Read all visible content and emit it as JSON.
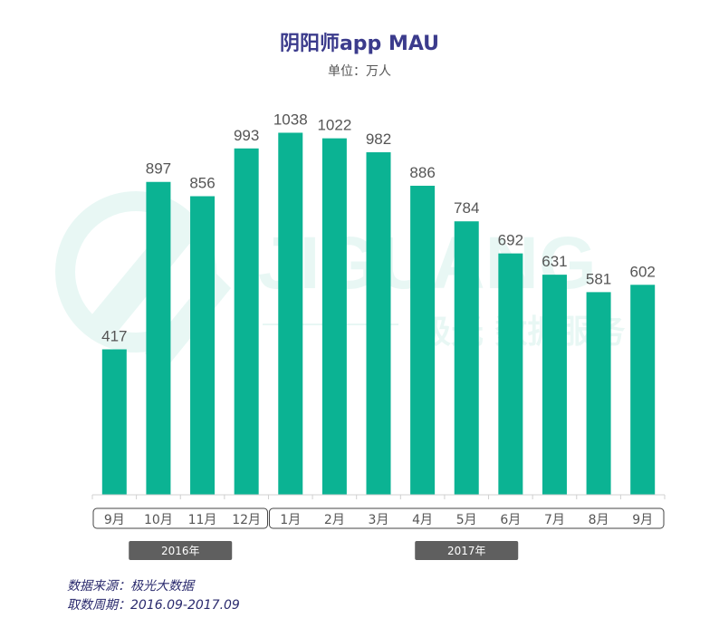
{
  "title": "阴阳师app MAU",
  "subtitle": "单位：万人",
  "watermark": {
    "brand": "JIGUANG",
    "tagline": "极光 数据服务"
  },
  "chart_data": {
    "type": "bar",
    "categories": [
      "9月",
      "10月",
      "11月",
      "12月",
      "1月",
      "2月",
      "3月",
      "4月",
      "5月",
      "6月",
      "7月",
      "8月",
      "9月"
    ],
    "values": [
      417,
      897,
      856,
      993,
      1038,
      1022,
      982,
      886,
      784,
      692,
      631,
      581,
      602
    ],
    "title": "阴阳师app MAU",
    "unit": "单位：万人",
    "year_groups": [
      {
        "label": "2016年",
        "categories": [
          "9月",
          "10月",
          "11月",
          "12月"
        ]
      },
      {
        "label": "2017年",
        "categories": [
          "1月",
          "2月",
          "3月",
          "4月",
          "5月",
          "6月",
          "7月",
          "8月",
          "9月"
        ]
      }
    ],
    "ylim": [
      0,
      1100
    ],
    "bar_color": "#0bb393",
    "grid": false
  },
  "source": {
    "line1": "数据来源：极光大数据",
    "line2": "取数周期：2016.09-2017.09"
  }
}
